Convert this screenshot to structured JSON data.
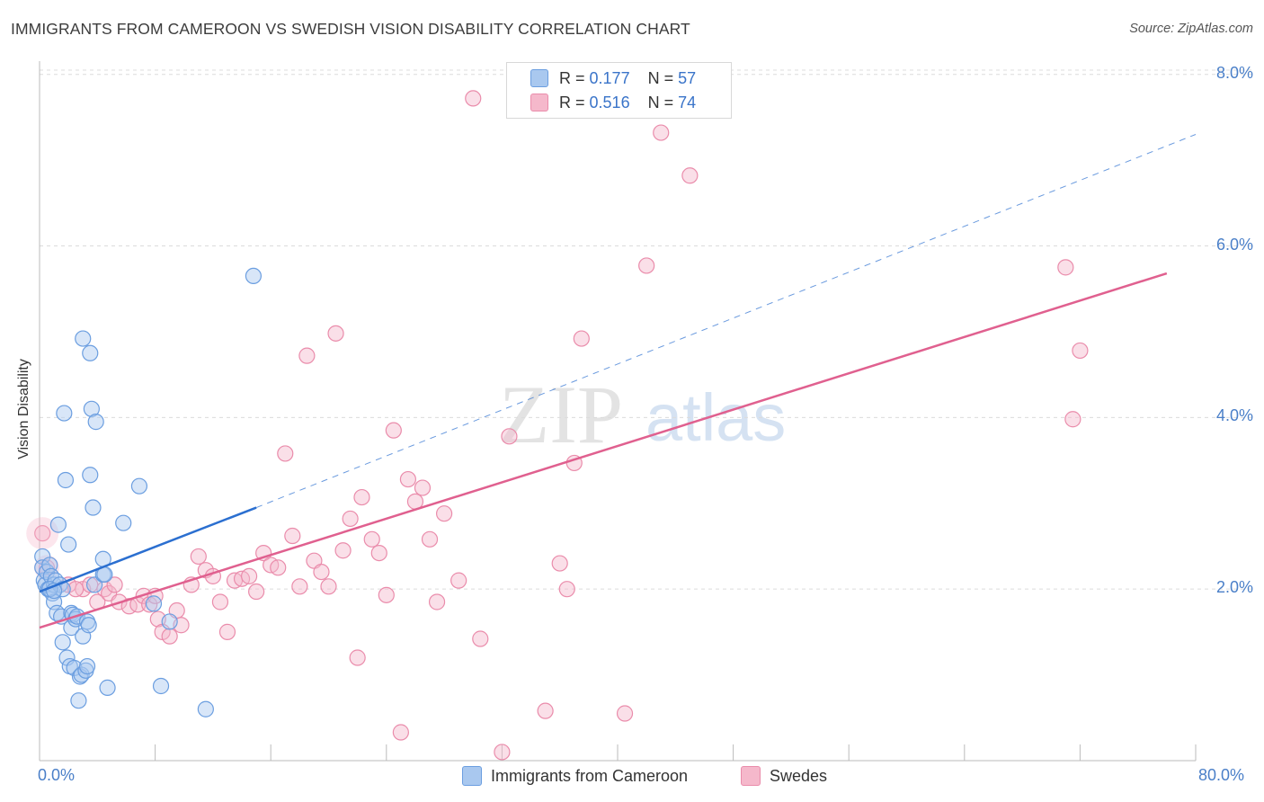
{
  "title": "IMMIGRANTS FROM CAMEROON VS SWEDISH VISION DISABILITY CORRELATION CHART",
  "source": "Source: ZipAtlas.com",
  "watermark": {
    "zip": "ZIP",
    "atlas": "atlas"
  },
  "colors": {
    "blue": "#a9c8ef",
    "blue_stroke": "#6b9ee0",
    "blue_line": "#2b6fd0",
    "pink": "#f5b8cb",
    "pink_stroke": "#ea8cab",
    "pink_line": "#e0608f",
    "tick_text": "#4a7fc8",
    "grid": "#dcdcdc"
  },
  "legend_top": {
    "rows": [
      {
        "r_label": "R =",
        "r_value": "0.177",
        "n_label": "N =",
        "n_value": "57",
        "color": "blue"
      },
      {
        "r_label": "R =",
        "r_value": "0.516",
        "n_label": "N =",
        "n_value": "74",
        "color": "pink"
      }
    ]
  },
  "legend_bottom": [
    {
      "label": "Immigrants from Cameroon",
      "color": "blue"
    },
    {
      "label": "Swedes",
      "color": "pink"
    }
  ],
  "chart_data": {
    "type": "scatter",
    "title": "IMMIGRANTS FROM CAMEROON VS SWEDISH VISION DISABILITY CORRELATION CHART",
    "xlabel": "",
    "ylabel": "Vision Disability",
    "xlim": [
      0,
      80
    ],
    "ylim": [
      0,
      8.3
    ],
    "x_tick_labels": [
      "0.0%",
      "80.0%"
    ],
    "y_ticks": [
      2,
      4,
      6,
      8
    ],
    "y_tick_labels": [
      "2.0%",
      "4.0%",
      "6.0%",
      "8.0%"
    ],
    "grid": "horizontal dashed",
    "series": [
      {
        "name": "Immigrants from Cameroon",
        "color": "blue",
        "regression": {
          "x": [
            0,
            15
          ],
          "y": [
            1.97,
            2.95
          ],
          "extended_to": [
            80,
            7.3
          ]
        },
        "points": [
          [
            0.2,
            2.38
          ],
          [
            0.2,
            2.25
          ],
          [
            0.3,
            2.1
          ],
          [
            0.4,
            2.05
          ],
          [
            0.5,
            2.2
          ],
          [
            0.6,
            2.0
          ],
          [
            0.7,
            2.28
          ],
          [
            0.8,
            2.15
          ],
          [
            0.9,
            1.95
          ],
          [
            1.0,
            1.85
          ],
          [
            1.0,
            2.05
          ],
          [
            1.1,
            2.1
          ],
          [
            1.2,
            1.72
          ],
          [
            1.3,
            2.75
          ],
          [
            1.4,
            2.05
          ],
          [
            1.5,
            1.68
          ],
          [
            1.6,
            1.38
          ],
          [
            1.6,
            2.0
          ],
          [
            1.7,
            4.05
          ],
          [
            1.8,
            3.27
          ],
          [
            1.9,
            1.2
          ],
          [
            2.0,
            2.52
          ],
          [
            2.1,
            1.1
          ],
          [
            2.2,
            1.55
          ],
          [
            2.2,
            1.72
          ],
          [
            2.3,
            1.7
          ],
          [
            2.4,
            1.08
          ],
          [
            2.5,
            1.65
          ],
          [
            2.6,
            1.68
          ],
          [
            2.7,
            0.7
          ],
          [
            2.8,
            0.98
          ],
          [
            2.9,
            1.0
          ],
          [
            3.0,
            1.45
          ],
          [
            3.0,
            4.92
          ],
          [
            3.2,
            1.05
          ],
          [
            3.3,
            1.1
          ],
          [
            3.3,
            1.62
          ],
          [
            3.4,
            1.58
          ],
          [
            3.5,
            3.33
          ],
          [
            3.5,
            4.75
          ],
          [
            3.6,
            4.1
          ],
          [
            3.7,
            2.95
          ],
          [
            3.8,
            2.05
          ],
          [
            3.9,
            3.95
          ],
          [
            4.4,
            2.35
          ],
          [
            4.4,
            2.17
          ],
          [
            4.5,
            2.17
          ],
          [
            4.7,
            0.85
          ],
          [
            5.8,
            2.77
          ],
          [
            6.9,
            3.2
          ],
          [
            7.9,
            1.83
          ],
          [
            8.4,
            0.87
          ],
          [
            9.0,
            1.62
          ],
          [
            11.5,
            0.6
          ],
          [
            14.8,
            5.65
          ],
          [
            0.7,
            2.0
          ],
          [
            1.0,
            1.98
          ]
        ]
      },
      {
        "name": "Swedes",
        "color": "pink",
        "regression": {
          "x": [
            0,
            78
          ],
          "y": [
            1.55,
            5.68
          ]
        },
        "points": [
          [
            0.2,
            2.65
          ],
          [
            0.5,
            2.25
          ],
          [
            2.0,
            2.05
          ],
          [
            3.0,
            2.0
          ],
          [
            3.5,
            2.05
          ],
          [
            4.0,
            1.85
          ],
          [
            4.5,
            2.0
          ],
          [
            4.8,
            1.95
          ],
          [
            5.2,
            2.05
          ],
          [
            5.5,
            1.85
          ],
          [
            6.2,
            1.8
          ],
          [
            6.8,
            1.82
          ],
          [
            7.2,
            1.92
          ],
          [
            7.6,
            1.82
          ],
          [
            8.2,
            1.65
          ],
          [
            8.5,
            1.5
          ],
          [
            9.0,
            1.45
          ],
          [
            9.5,
            1.75
          ],
          [
            9.8,
            1.58
          ],
          [
            10.5,
            2.05
          ],
          [
            11.0,
            2.38
          ],
          [
            11.5,
            2.22
          ],
          [
            12.0,
            2.15
          ],
          [
            12.5,
            1.85
          ],
          [
            13.0,
            1.5
          ],
          [
            13.5,
            2.1
          ],
          [
            14.0,
            2.12
          ],
          [
            14.5,
            2.15
          ],
          [
            15.0,
            1.97
          ],
          [
            15.5,
            2.42
          ],
          [
            16.0,
            2.28
          ],
          [
            16.5,
            2.25
          ],
          [
            17.0,
            3.58
          ],
          [
            17.5,
            2.62
          ],
          [
            18.0,
            2.03
          ],
          [
            18.5,
            4.72
          ],
          [
            19.0,
            2.33
          ],
          [
            19.5,
            2.2
          ],
          [
            20.0,
            2.03
          ],
          [
            20.5,
            4.98
          ],
          [
            21.0,
            2.45
          ],
          [
            21.5,
            2.82
          ],
          [
            22.0,
            1.2
          ],
          [
            22.3,
            3.07
          ],
          [
            23.0,
            2.58
          ],
          [
            23.5,
            2.42
          ],
          [
            24.0,
            1.93
          ],
          [
            24.5,
            3.85
          ],
          [
            25.0,
            0.33
          ],
          [
            25.5,
            3.28
          ],
          [
            26.0,
            3.02
          ],
          [
            26.5,
            3.18
          ],
          [
            27.0,
            2.58
          ],
          [
            27.5,
            1.85
          ],
          [
            28.0,
            2.88
          ],
          [
            29.0,
            2.1
          ],
          [
            30.0,
            7.72
          ],
          [
            30.5,
            1.42
          ],
          [
            32.0,
            0.1
          ],
          [
            32.5,
            3.78
          ],
          [
            35.0,
            0.58
          ],
          [
            36.0,
            2.3
          ],
          [
            36.5,
            2.0
          ],
          [
            37.0,
            3.47
          ],
          [
            37.5,
            4.92
          ],
          [
            40.5,
            0.55
          ],
          [
            42.0,
            5.77
          ],
          [
            43.0,
            7.32
          ],
          [
            45.0,
            6.82
          ],
          [
            72.0,
            4.78
          ],
          [
            71.5,
            3.98
          ],
          [
            71.0,
            5.75
          ],
          [
            8.0,
            1.92
          ],
          [
            2.5,
            2.0
          ]
        ]
      }
    ]
  }
}
